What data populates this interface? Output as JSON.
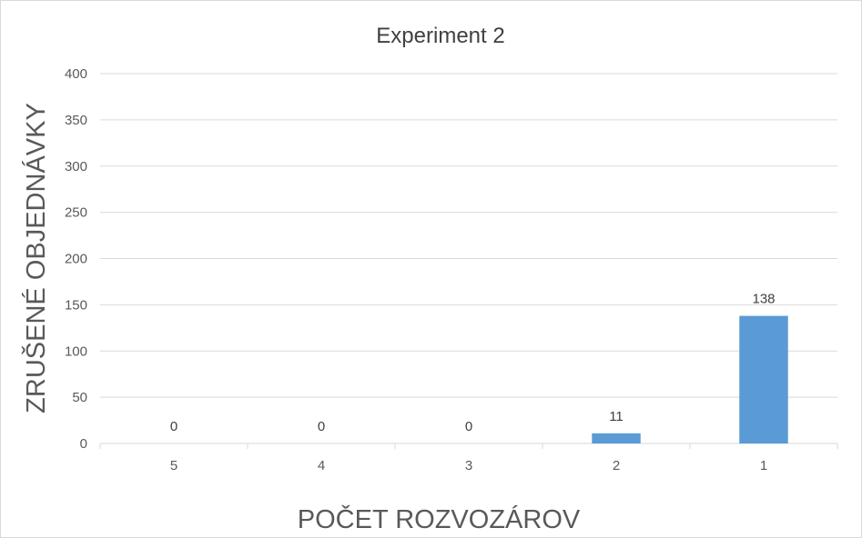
{
  "chart_data": {
    "type": "bar",
    "title": "Experiment 2",
    "xlabel": "POČET ROZVOZÁROV",
    "ylabel": "ZRUŠENÉ OBJEDNÁVKY",
    "categories": [
      "5",
      "4",
      "3",
      "2",
      "1"
    ],
    "values": [
      0,
      0,
      0,
      11,
      138
    ],
    "data_labels": [
      "0",
      "0",
      "0",
      "11",
      "138"
    ],
    "ylim": [
      0,
      400
    ],
    "yticks": [
      0,
      50,
      100,
      150,
      200,
      250,
      300,
      350,
      400
    ],
    "grid": true,
    "legend": "none",
    "bar_color": "#5b9bd5",
    "grid_color": "#d9d9d9"
  }
}
